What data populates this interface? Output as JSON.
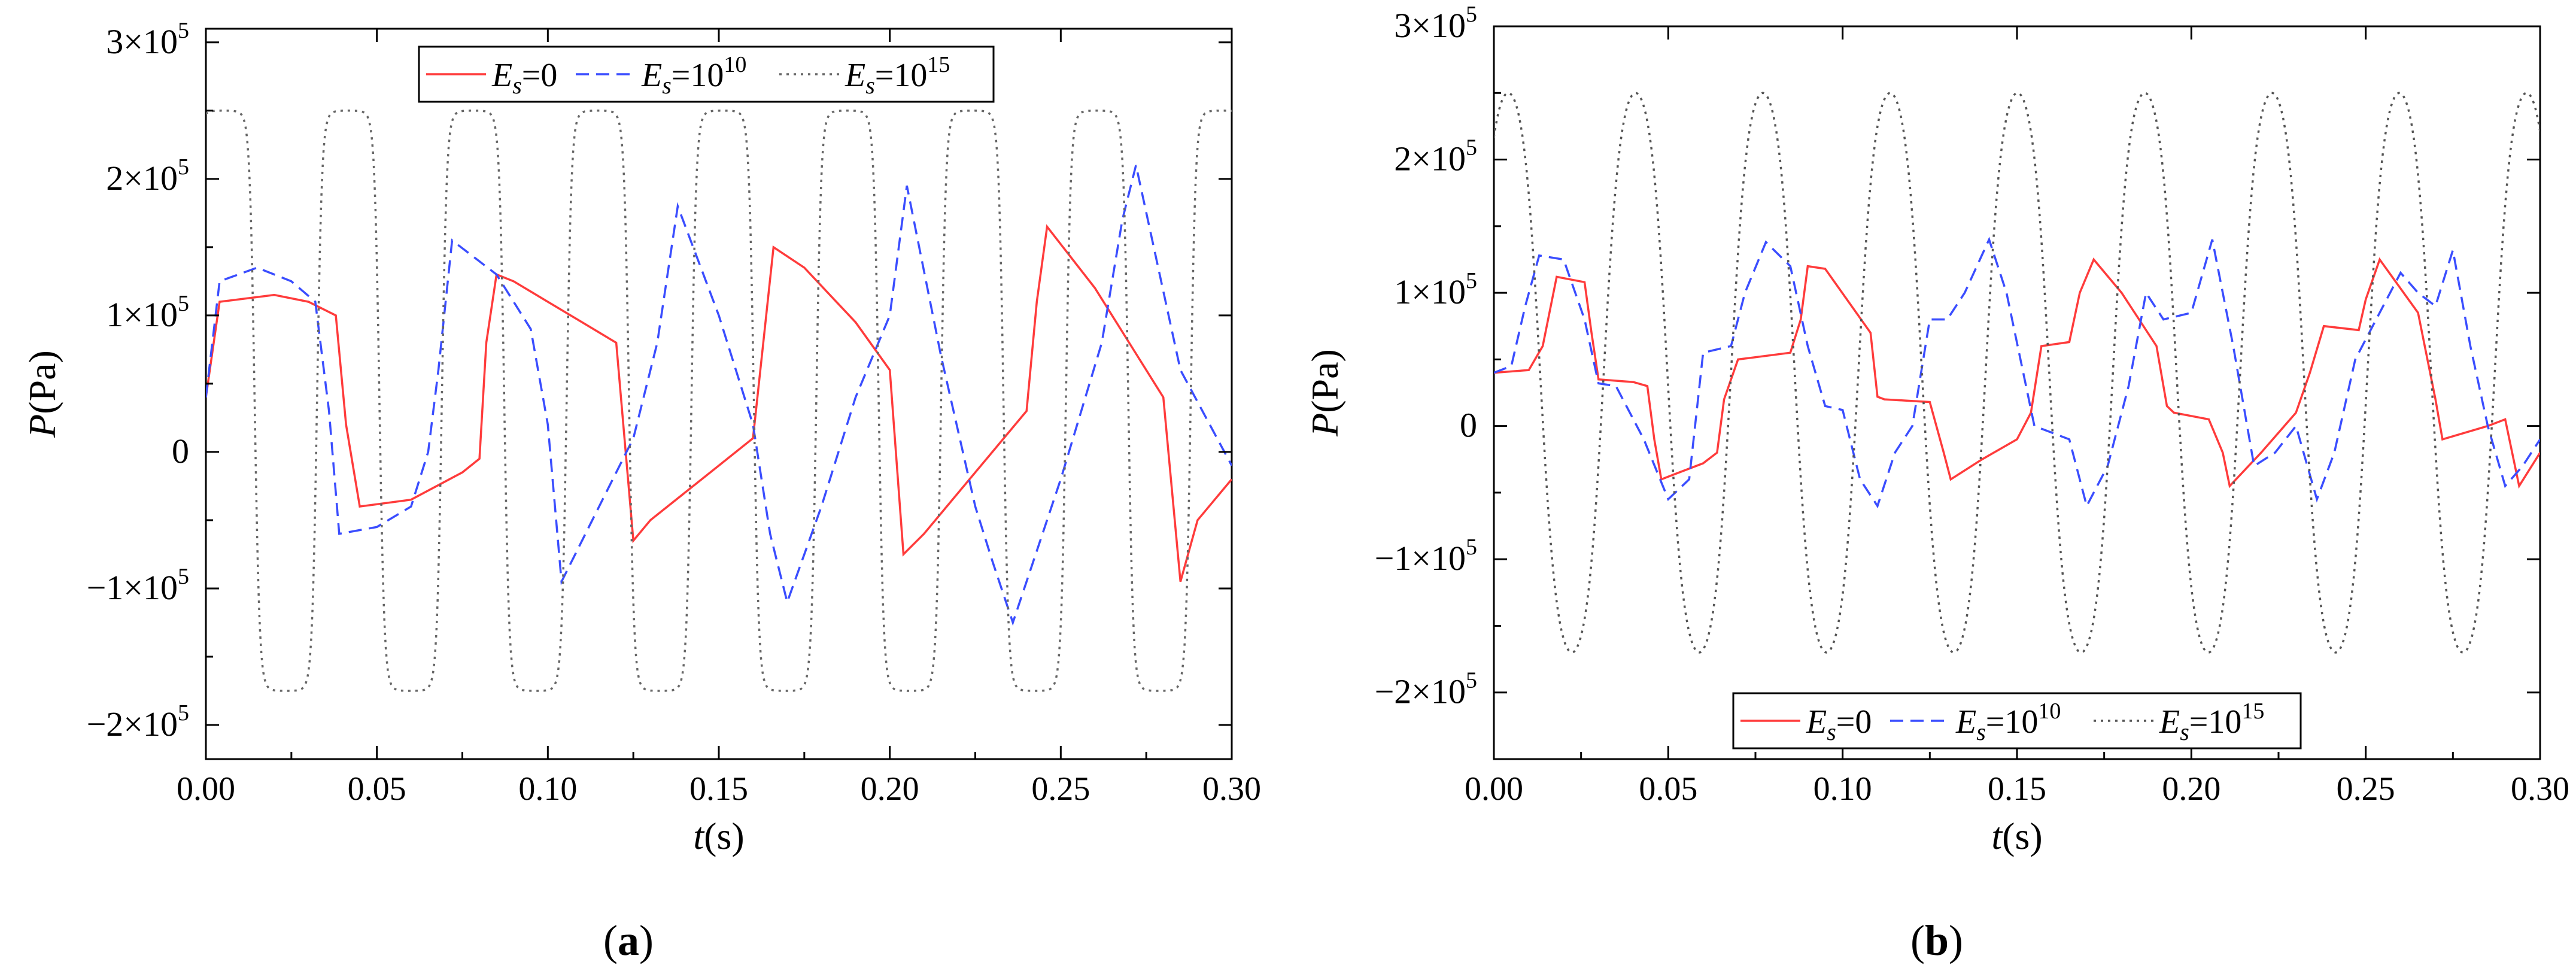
{
  "chart_data": [
    {
      "id": "a",
      "type": "line",
      "panel_label": "a",
      "xlabel": "t",
      "xunit": "(s)",
      "ylabel": "P",
      "yunit": "(Pa)",
      "xlim": [
        0,
        0.3
      ],
      "ylim": [
        -225000,
        310000
      ],
      "x_ticks": [
        "0.00",
        "0.05",
        "0.10",
        "0.15",
        "0.20",
        "0.25",
        "0.30"
      ],
      "y_ticks": [
        {
          "value": 300000,
          "text": "3×10",
          "exp": "5"
        },
        {
          "value": 200000,
          "text": "2×10",
          "exp": "5"
        },
        {
          "value": 100000,
          "text": "1×10",
          "exp": "5"
        },
        {
          "value": 0,
          "text": "0",
          "exp": ""
        },
        {
          "value": -100000,
          "text": "−1×10",
          "exp": "5"
        },
        {
          "value": -200000,
          "text": "−2×10",
          "exp": "5"
        }
      ],
      "legend_position": "top-center",
      "series": [
        {
          "name": "Es=0",
          "label_main": "E",
          "label_sub": "s",
          "label_eq": "=0",
          "label_exp": "",
          "color": "#ff3b3b",
          "dash": "solid",
          "x": [
            0.0,
            0.004,
            0.02,
            0.03,
            0.038,
            0.041,
            0.045,
            0.06,
            0.075,
            0.08,
            0.082,
            0.085,
            0.09,
            0.1,
            0.11,
            0.12,
            0.125,
            0.13,
            0.14,
            0.15,
            0.16,
            0.163,
            0.166,
            0.175,
            0.19,
            0.2,
            0.204,
            0.21,
            0.22,
            0.23,
            0.24,
            0.243,
            0.246,
            0.26,
            0.27,
            0.28,
            0.285,
            0.29,
            0.3
          ],
          "y": [
            40000,
            110000,
            115000,
            110000,
            100000,
            20000,
            -40000,
            -35000,
            -15000,
            -5000,
            80000,
            130000,
            125000,
            110000,
            95000,
            80000,
            -65000,
            -50000,
            -30000,
            -10000,
            10000,
            80000,
            150000,
            135000,
            95000,
            60000,
            -75000,
            -60000,
            -30000,
            0,
            30000,
            110000,
            165000,
            120000,
            80000,
            40000,
            -95000,
            -50000,
            -20000
          ]
        },
        {
          "name": "Es=10^10",
          "label_main": "E",
          "label_sub": "s",
          "label_eq": "=10",
          "label_exp": "10",
          "color": "#3a4dff",
          "dash": "dashed",
          "x": [
            0.0,
            0.004,
            0.015,
            0.025,
            0.032,
            0.036,
            0.039,
            0.05,
            0.06,
            0.065,
            0.068,
            0.072,
            0.085,
            0.095,
            0.1,
            0.104,
            0.115,
            0.125,
            0.132,
            0.138,
            0.15,
            0.16,
            0.165,
            0.17,
            0.18,
            0.19,
            0.2,
            0.205,
            0.215,
            0.225,
            0.23,
            0.236,
            0.25,
            0.262,
            0.268,
            0.272,
            0.285,
            0.3
          ],
          "y": [
            40000,
            125000,
            135000,
            125000,
            110000,
            30000,
            -60000,
            -55000,
            -40000,
            0,
            60000,
            155000,
            130000,
            90000,
            20000,
            -95000,
            -40000,
            10000,
            80000,
            180000,
            100000,
            20000,
            -60000,
            -110000,
            -40000,
            40000,
            100000,
            195000,
            70000,
            -40000,
            -80000,
            -125000,
            -20000,
            80000,
            170000,
            210000,
            60000,
            -10000
          ]
        },
        {
          "name": "Es=10^15",
          "label_main": "E",
          "label_sub": "s",
          "label_eq": "=10",
          "label_exp": "15",
          "color": "#666666",
          "dash": "dotted",
          "period": 0.0365,
          "amp_max": 250000,
          "amp_min": -175000,
          "phase": -0.004,
          "sharpness": 4.0
        }
      ]
    },
    {
      "id": "b",
      "type": "line",
      "panel_label": "b",
      "xlabel": "t",
      "xunit": "(s)",
      "ylabel": "P",
      "yunit": "(Pa)",
      "xlim": [
        0,
        0.3
      ],
      "ylim": [
        -250000,
        300000
      ],
      "x_ticks": [
        "0.00",
        "0.05",
        "0.10",
        "0.15",
        "0.20",
        "0.25",
        "0.30"
      ],
      "y_ticks": [
        {
          "value": 300000,
          "text": "3×10",
          "exp": "5"
        },
        {
          "value": 200000,
          "text": "2×10",
          "exp": "5"
        },
        {
          "value": 100000,
          "text": "1×10",
          "exp": "5"
        },
        {
          "value": 0,
          "text": "0",
          "exp": ""
        },
        {
          "value": -100000,
          "text": "−1×10",
          "exp": "5"
        },
        {
          "value": -200000,
          "text": "−2×10",
          "exp": "5"
        }
      ],
      "legend_position": "bottom-center",
      "series": [
        {
          "name": "Es=0",
          "label_main": "E",
          "label_sub": "s",
          "label_eq": "=0",
          "label_exp": "",
          "color": "#ff3b3b",
          "dash": "solid",
          "x": [
            0.0,
            0.01,
            0.014,
            0.018,
            0.026,
            0.028,
            0.03,
            0.04,
            0.044,
            0.046,
            0.048,
            0.06,
            0.064,
            0.066,
            0.07,
            0.085,
            0.088,
            0.09,
            0.095,
            0.108,
            0.11,
            0.112,
            0.125,
            0.129,
            0.131,
            0.14,
            0.15,
            0.154,
            0.157,
            0.165,
            0.168,
            0.172,
            0.18,
            0.19,
            0.193,
            0.195,
            0.205,
            0.209,
            0.211,
            0.22,
            0.23,
            0.234,
            0.238,
            0.248,
            0.25,
            0.254,
            0.265,
            0.27,
            0.272,
            0.285,
            0.29,
            0.294,
            0.3
          ],
          "y": [
            40000,
            42000,
            60000,
            112000,
            108000,
            70000,
            35000,
            33000,
            30000,
            -10000,
            -40000,
            -28000,
            -20000,
            20000,
            50000,
            55000,
            80000,
            120000,
            118000,
            70000,
            22000,
            20000,
            18000,
            -20000,
            -40000,
            -25000,
            -10000,
            10000,
            60000,
            63000,
            100000,
            125000,
            100000,
            60000,
            15000,
            10000,
            5000,
            -20000,
            -45000,
            -20000,
            10000,
            40000,
            75000,
            72000,
            95000,
            125000,
            85000,
            20000,
            -10000,
            0,
            5000,
            -45000,
            -20000
          ]
        },
        {
          "name": "Es=10^10",
          "label_main": "E",
          "label_sub": "s",
          "label_eq": "=10",
          "label_exp": "10",
          "color": "#3a4dff",
          "dash": "dashed",
          "x": [
            0.0,
            0.005,
            0.009,
            0.013,
            0.02,
            0.026,
            0.03,
            0.035,
            0.043,
            0.05,
            0.056,
            0.06,
            0.068,
            0.072,
            0.078,
            0.085,
            0.09,
            0.095,
            0.1,
            0.105,
            0.11,
            0.115,
            0.12,
            0.125,
            0.13,
            0.135,
            0.142,
            0.147,
            0.155,
            0.16,
            0.165,
            0.17,
            0.176,
            0.182,
            0.187,
            0.192,
            0.2,
            0.206,
            0.212,
            0.218,
            0.224,
            0.23,
            0.236,
            0.241,
            0.247,
            0.253,
            0.26,
            0.265,
            0.27,
            0.275,
            0.28,
            0.285,
            0.29,
            0.295,
            0.3
          ],
          "y": [
            40000,
            45000,
            90000,
            128000,
            125000,
            80000,
            32000,
            30000,
            -10000,
            -55000,
            -40000,
            55000,
            60000,
            100000,
            138000,
            120000,
            60000,
            15000,
            12000,
            -40000,
            -60000,
            -20000,
            0,
            80000,
            80000,
            100000,
            140000,
            100000,
            0,
            -5000,
            -10000,
            -60000,
            -30000,
            30000,
            100000,
            80000,
            85000,
            140000,
            60000,
            -30000,
            -20000,
            0,
            -55000,
            -20000,
            50000,
            80000,
            115000,
            100000,
            90000,
            132000,
            60000,
            0,
            -45000,
            -30000,
            -10000
          ]
        },
        {
          "name": "Es=10^15",
          "label_main": "E",
          "label_sub": "s",
          "label_eq": "=10",
          "label_exp": "15",
          "color": "#555555",
          "dash": "dotted",
          "period": 0.0365,
          "amp_max": 250000,
          "amp_min": -170000,
          "phase": -0.005,
          "sharpness": 1.0
        }
      ]
    }
  ]
}
